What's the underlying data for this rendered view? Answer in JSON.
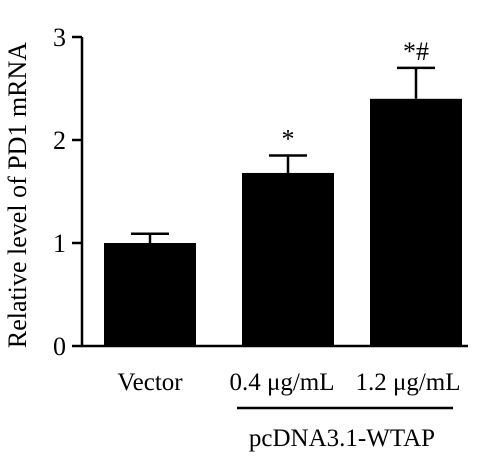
{
  "chart_data": {
    "type": "bar",
    "ylabel": "Relative level of PD1 mRNA",
    "ylim": [
      0,
      3
    ],
    "yticks": [
      "0",
      "1",
      "2",
      "3"
    ],
    "categories": [
      "Vector",
      "0.4 μg/mL",
      "1.2 μg/mL"
    ],
    "values": [
      1.0,
      1.68,
      2.4
    ],
    "errors": [
      0.09,
      0.17,
      0.3
    ],
    "annotations": [
      "",
      "*",
      "*#"
    ],
    "group_label": "pcDNA3.1-WTAP",
    "bar_color": "#000000"
  }
}
